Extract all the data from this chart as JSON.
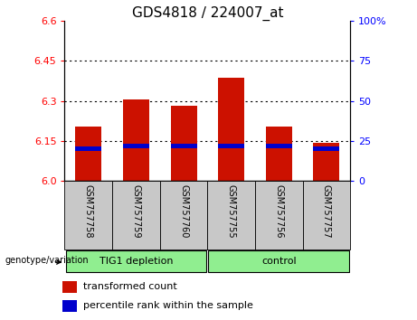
{
  "title": "GDS4818 / 224007_at",
  "samples": [
    "GSM757758",
    "GSM757759",
    "GSM757760",
    "GSM757755",
    "GSM757756",
    "GSM757757"
  ],
  "red_values": [
    6.205,
    6.305,
    6.283,
    6.385,
    6.205,
    6.143
  ],
  "blue_values": [
    6.113,
    6.122,
    6.122,
    6.122,
    6.122,
    6.113
  ],
  "blue_bar_height": 0.016,
  "y_min": 6.0,
  "y_max": 6.6,
  "y_ticks_left": [
    6.0,
    6.15,
    6.3,
    6.45,
    6.6
  ],
  "y_ticks_right_pct": [
    0,
    25,
    50,
    75,
    100
  ],
  "y_right_labels": [
    "0",
    "25",
    "50",
    "75",
    "100%"
  ],
  "bar_width": 0.55,
  "red_color": "#cc1100",
  "blue_color": "#0000cc",
  "group_bg": "#90EE90",
  "sample_bg": "#c8c8c8",
  "legend_red": "transformed count",
  "legend_blue": "percentile rank within the sample",
  "genotype_label": "genotype/variation",
  "title_fontsize": 11,
  "tick_fontsize": 8,
  "sample_fontsize": 7,
  "group_fontsize": 8,
  "legend_fontsize": 8
}
